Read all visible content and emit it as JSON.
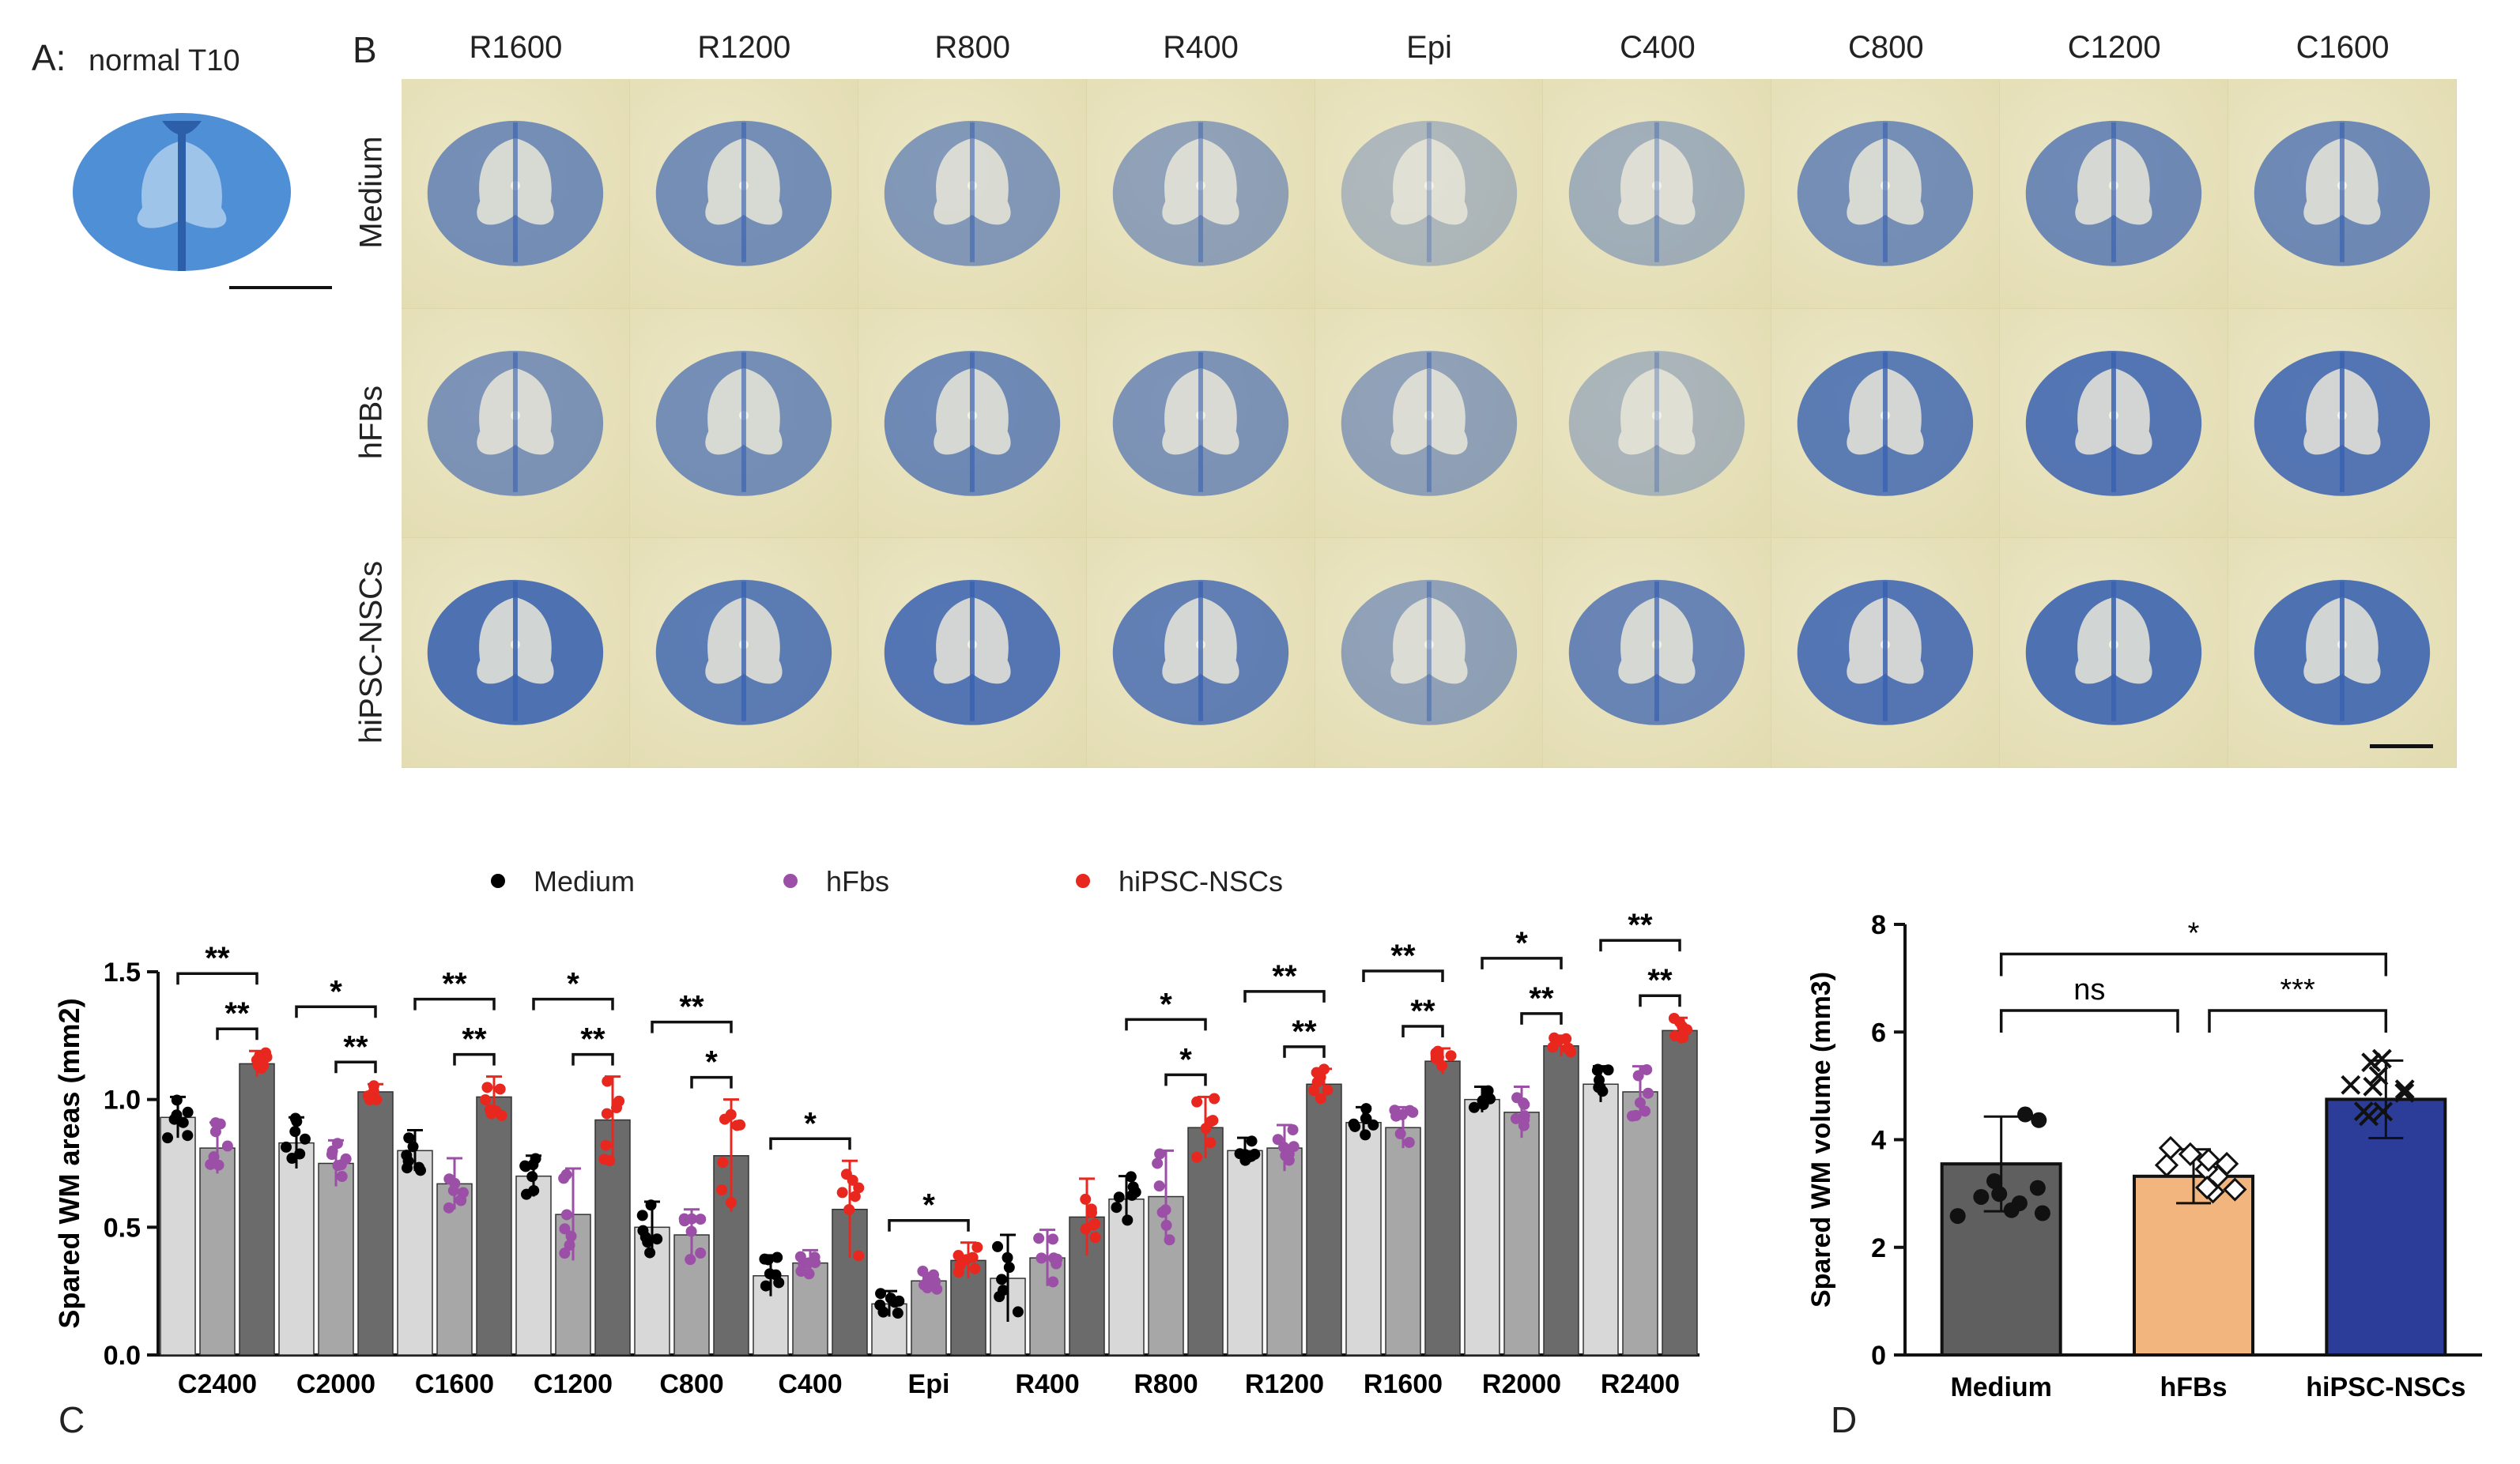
{
  "panel_a": {
    "letter": "A:",
    "label": "normal T10"
  },
  "panel_b": {
    "letter": "B",
    "columns": [
      "R1600",
      "R1200",
      "R800",
      "R400",
      "Epi",
      "C400",
      "C800",
      "C1200",
      "C1600"
    ],
    "rows": [
      "Medium",
      "hFBs",
      "hiPSC-NSCs"
    ],
    "stain_intensity": [
      [
        0.55,
        0.55,
        0.45,
        0.35,
        0.12,
        0.22,
        0.55,
        0.6,
        0.6
      ],
      [
        0.5,
        0.55,
        0.6,
        0.5,
        0.35,
        0.15,
        0.75,
        0.8,
        0.8
      ],
      [
        0.85,
        0.75,
        0.8,
        0.7,
        0.35,
        0.65,
        0.8,
        0.85,
        0.85
      ]
    ],
    "stain_color": "#3a62b0",
    "background_color": "#e6e0b8"
  },
  "panel_c": {
    "letter": "C",
    "chart_data": {
      "type": "bar",
      "ylabel": "Spared WM areas (mm2)",
      "ylim": [
        0,
        1.5
      ],
      "yticks": [
        "0.0",
        "0.5",
        "1.0",
        "1.5"
      ],
      "categories": [
        "C2400",
        "C2000",
        "C1600",
        "C1200",
        "C800",
        "C400",
        "Epi",
        "R400",
        "R800",
        "R1200",
        "R1600",
        "R2000",
        "R2400"
      ],
      "series": [
        {
          "name": "Medium",
          "color": "#000000",
          "bar_color": "#d8d8d8",
          "values": [
            0.93,
            0.83,
            0.8,
            0.7,
            0.5,
            0.31,
            0.2,
            0.3,
            0.61,
            0.8,
            0.91,
            1.0,
            1.06
          ],
          "errors": [
            0.08,
            0.1,
            0.08,
            0.08,
            0.1,
            0.08,
            0.05,
            0.17,
            0.09,
            0.05,
            0.06,
            0.05,
            0.07
          ]
        },
        {
          "name": "hFbs",
          "color": "#9b4fa6",
          "bar_color": "#a7a7a7",
          "values": [
            0.81,
            0.75,
            0.67,
            0.55,
            0.47,
            0.36,
            0.29,
            0.38,
            0.62,
            0.81,
            0.89,
            0.95,
            1.03
          ],
          "errors": [
            0.1,
            0.09,
            0.1,
            0.18,
            0.1,
            0.05,
            0.03,
            0.11,
            0.18,
            0.09,
            0.08,
            0.1,
            0.1
          ]
        },
        {
          "name": "hiPSC-NSCs",
          "color": "#e8271f",
          "bar_color": "#6b6b6b",
          "values": [
            1.14,
            1.03,
            1.01,
            0.92,
            0.78,
            0.57,
            0.37,
            0.54,
            0.89,
            1.06,
            1.15,
            1.21,
            1.27
          ],
          "errors": [
            0.05,
            0.03,
            0.08,
            0.17,
            0.22,
            0.19,
            0.07,
            0.15,
            0.12,
            0.06,
            0.05,
            0.04,
            0.05
          ]
        }
      ],
      "significance": [
        {
          "category": "C2400",
          "outer": "**",
          "inner": "**"
        },
        {
          "category": "C2000",
          "outer": "*",
          "inner": "**"
        },
        {
          "category": "C1600",
          "outer": "**",
          "inner": "**"
        },
        {
          "category": "C1200",
          "outer": "*",
          "inner": "**"
        },
        {
          "category": "C800",
          "outer": "**",
          "inner": "*"
        },
        {
          "category": "C400",
          "outer": "*",
          "inner": ""
        },
        {
          "category": "Epi",
          "outer": "*",
          "inner": ""
        },
        {
          "category": "R400",
          "outer": "",
          "inner": ""
        },
        {
          "category": "R800",
          "outer": "*",
          "inner": "*"
        },
        {
          "category": "R1200",
          "outer": "**",
          "inner": "**"
        },
        {
          "category": "R1600",
          "outer": "**",
          "inner": "**"
        },
        {
          "category": "R2000",
          "outer": "*",
          "inner": "**"
        },
        {
          "category": "R2400",
          "outer": "**",
          "inner": "**"
        }
      ]
    }
  },
  "panel_d": {
    "letter": "D",
    "chart_data": {
      "type": "bar",
      "ylabel": "Spared WM volume (mm3)",
      "ylim": [
        0,
        8
      ],
      "yticks": [
        "0",
        "2",
        "4",
        "6",
        "8"
      ],
      "categories": [
        "Medium",
        "hFBs",
        "hiPSC-NSCs"
      ],
      "values": [
        3.55,
        3.32,
        4.75
      ],
      "errors": [
        0.88,
        0.5,
        0.72
      ],
      "bar_colors": [
        "#5f5f5f",
        "#f2b57d",
        "#2b3d98"
      ],
      "significance": [
        {
          "from": "Medium",
          "to": "hiPSC-NSCs",
          "label": "*"
        },
        {
          "from": "Medium",
          "to": "hFBs",
          "label": "ns"
        },
        {
          "from": "hFBs",
          "to": "hiPSC-NSCs",
          "label": "***"
        }
      ]
    }
  }
}
